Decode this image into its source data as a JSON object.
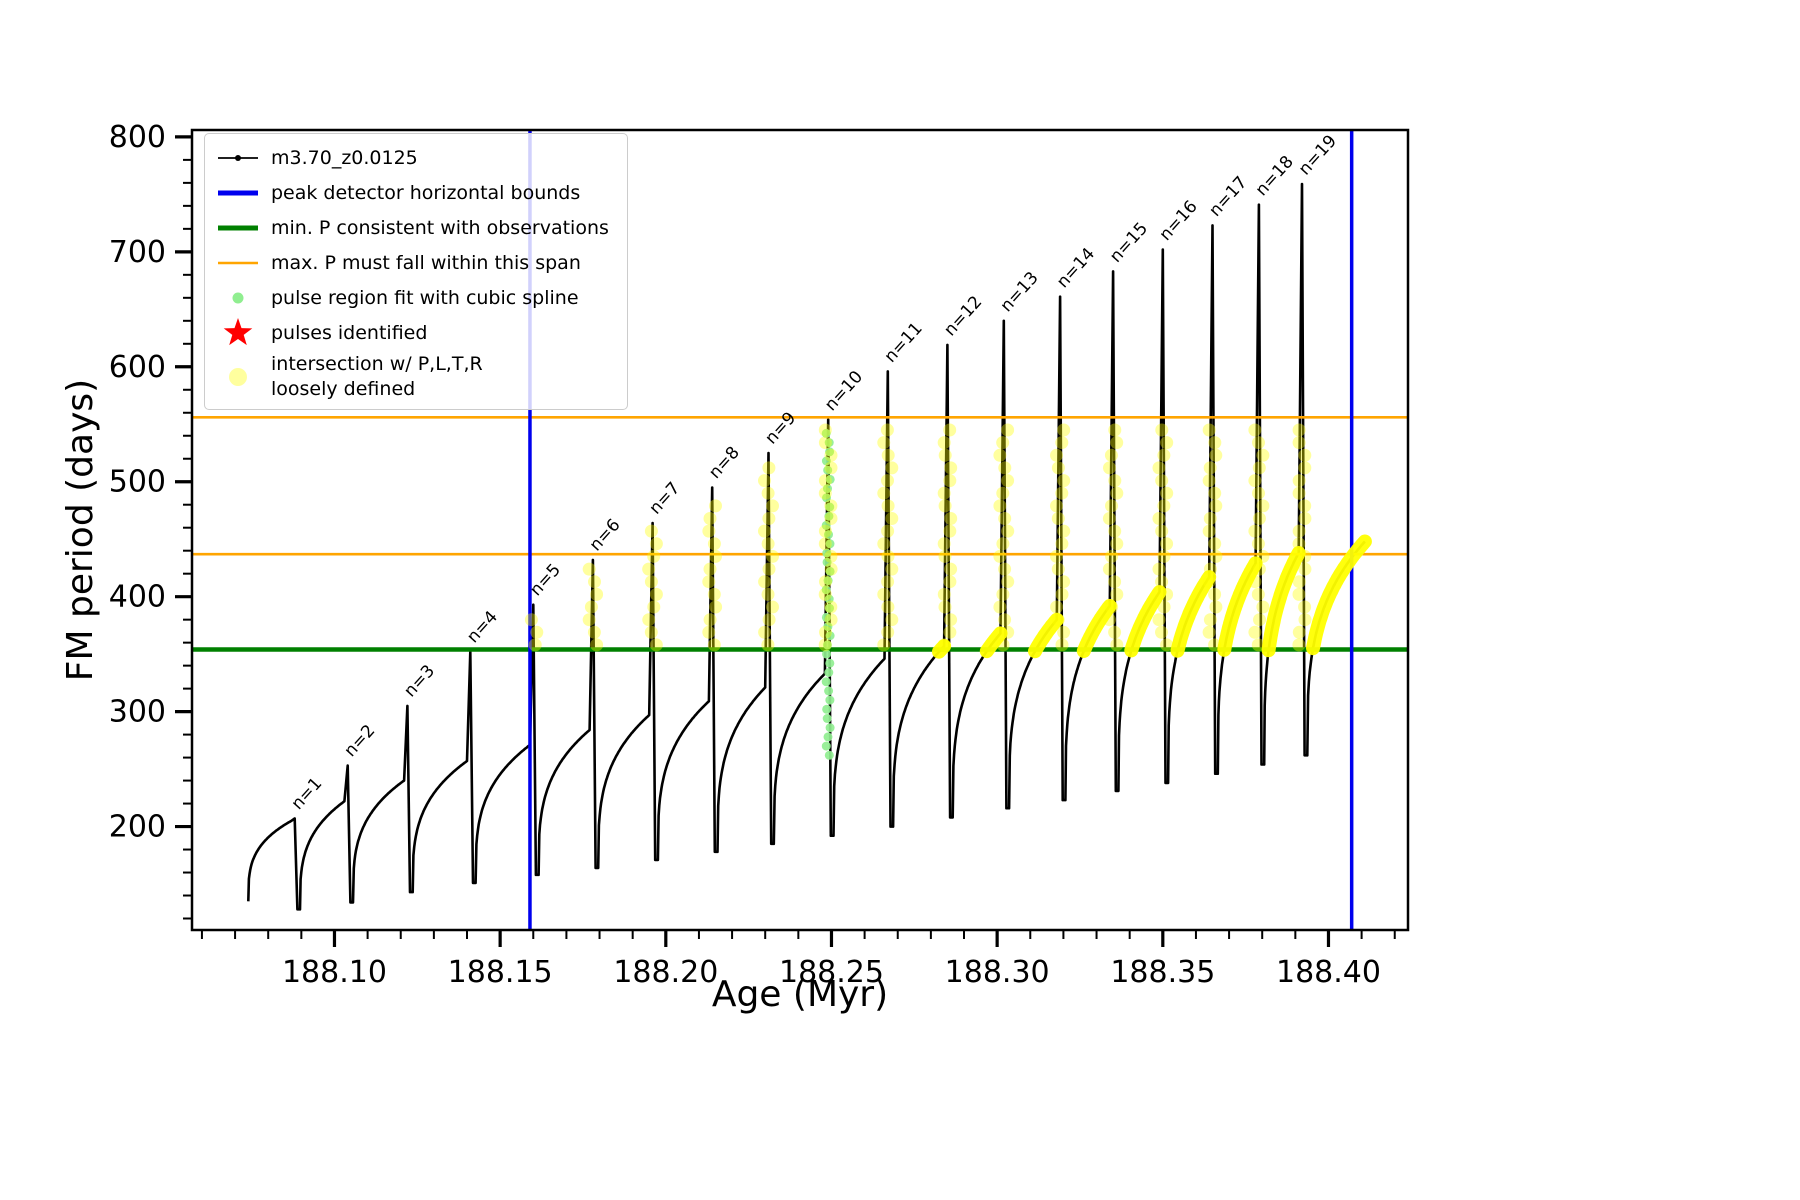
{
  "figure": {
    "background": "#ffffff"
  },
  "chart_data": {
    "type": "line",
    "title": "",
    "xlabel": "Age (Myr)",
    "ylabel": "FM period (days)",
    "xlim": [
      188.057,
      188.424
    ],
    "ylim": [
      110,
      806
    ],
    "xticks": [
      188.1,
      188.15,
      188.2,
      188.25,
      188.3,
      188.35,
      188.4
    ],
    "xtick_labels": [
      "188.10",
      "188.15",
      "188.20",
      "188.25",
      "188.30",
      "188.35",
      "188.40"
    ],
    "yticks": [
      200,
      300,
      400,
      500,
      600,
      700,
      800
    ],
    "ytick_labels": [
      "200",
      "300",
      "400",
      "500",
      "600",
      "700",
      "800"
    ],
    "x_minor_start": 188.06,
    "x_minor_step": 0.01,
    "y_minor_start": 120,
    "y_minor_step": 20,
    "grid": false,
    "legend_position": "upper-left",
    "series_label": "m3.70_z0.0125",
    "peak_bounds_x": [
      188.159,
      188.407
    ],
    "min_p_line": 354,
    "max_p_span": [
      437,
      556
    ],
    "arc_exponent": 0.3,
    "lead_in": {
      "t": 188.074,
      "p": 135
    },
    "final_arc": {
      "t": 188.411,
      "p": 448
    },
    "pulse_label_prefix": "n=",
    "pulses": [
      {
        "n": 1,
        "t": 188.088,
        "peak": 207,
        "shoulder": 205,
        "min_after": 128
      },
      {
        "n": 2,
        "t": 188.104,
        "peak": 253,
        "shoulder": 222,
        "min_after": 134
      },
      {
        "n": 3,
        "t": 188.122,
        "peak": 305,
        "shoulder": 240,
        "min_after": 143
      },
      {
        "n": 4,
        "t": 188.141,
        "peak": 352,
        "shoulder": 257,
        "min_after": 151
      },
      {
        "n": 5,
        "t": 188.16,
        "peak": 393,
        "shoulder": 271,
        "min_after": 158
      },
      {
        "n": 6,
        "t": 188.178,
        "peak": 432,
        "shoulder": 284,
        "min_after": 164
      },
      {
        "n": 7,
        "t": 188.196,
        "peak": 464,
        "shoulder": 297,
        "min_after": 171
      },
      {
        "n": 8,
        "t": 188.214,
        "peak": 495,
        "shoulder": 309,
        "min_after": 178
      },
      {
        "n": 9,
        "t": 188.231,
        "peak": 525,
        "shoulder": 321,
        "min_after": 185
      },
      {
        "n": 10,
        "t": 188.249,
        "peak": 554,
        "shoulder": 333,
        "min_after": 192
      },
      {
        "n": 11,
        "t": 188.267,
        "peak": 596,
        "shoulder": 346,
        "min_after": 200
      },
      {
        "n": 12,
        "t": 188.285,
        "peak": 619,
        "shoulder": 357,
        "min_after": 208
      },
      {
        "n": 13,
        "t": 188.302,
        "peak": 640,
        "shoulder": 368,
        "min_after": 216
      },
      {
        "n": 14,
        "t": 188.319,
        "peak": 661,
        "shoulder": 380,
        "min_after": 223
      },
      {
        "n": 15,
        "t": 188.335,
        "peak": 683,
        "shoulder": 392,
        "min_after": 231
      },
      {
        "n": 16,
        "t": 188.35,
        "peak": 702,
        "shoulder": 404,
        "min_after": 238
      },
      {
        "n": 17,
        "t": 188.365,
        "peak": 723,
        "shoulder": 417,
        "min_after": 246
      },
      {
        "n": 18,
        "t": 188.379,
        "peak": 741,
        "shoulder": 429,
        "min_after": 254
      },
      {
        "n": 19,
        "t": 188.392,
        "peak": 759,
        "shoulder": 438,
        "min_after": 262
      }
    ],
    "spline_dots": {
      "pulse": 10,
      "from": 262,
      "to": 548,
      "step": 8
    },
    "yellow_spike_from": 5,
    "yellow_spike_range": [
      358,
      553
    ],
    "yellow_spike_step": 11,
    "yellow_arc_min": 354,
    "colors": {
      "series": "#000000",
      "bounds": "#0000ee",
      "min_p": "#008000",
      "max_p": "#ffa500",
      "spline": "#90ee90",
      "pulses_star": "#ff0000",
      "intersection": "#ffff00"
    }
  },
  "legend": {
    "items": [
      {
        "marker": "line-dot",
        "color": "#000000",
        "label": "m3.70_z0.0125"
      },
      {
        "marker": "thick-line",
        "color": "#0000ee",
        "label": "peak detector horizontal bounds"
      },
      {
        "marker": "thick-line",
        "color": "#008000",
        "label": "min. P consistent with observations"
      },
      {
        "marker": "line",
        "color": "#ffa500",
        "label": "max. P must fall within this span"
      },
      {
        "marker": "dot-small",
        "color": "#90ee90",
        "label": "pulse region fit with cubic spline"
      },
      {
        "marker": "star",
        "color": "#ff0000",
        "label": "pulses identified"
      },
      {
        "marker": "dot-big",
        "color": "#ffff99",
        "label": "intersection w/ P,L,T,R",
        "label2": "loosely defined"
      }
    ]
  }
}
